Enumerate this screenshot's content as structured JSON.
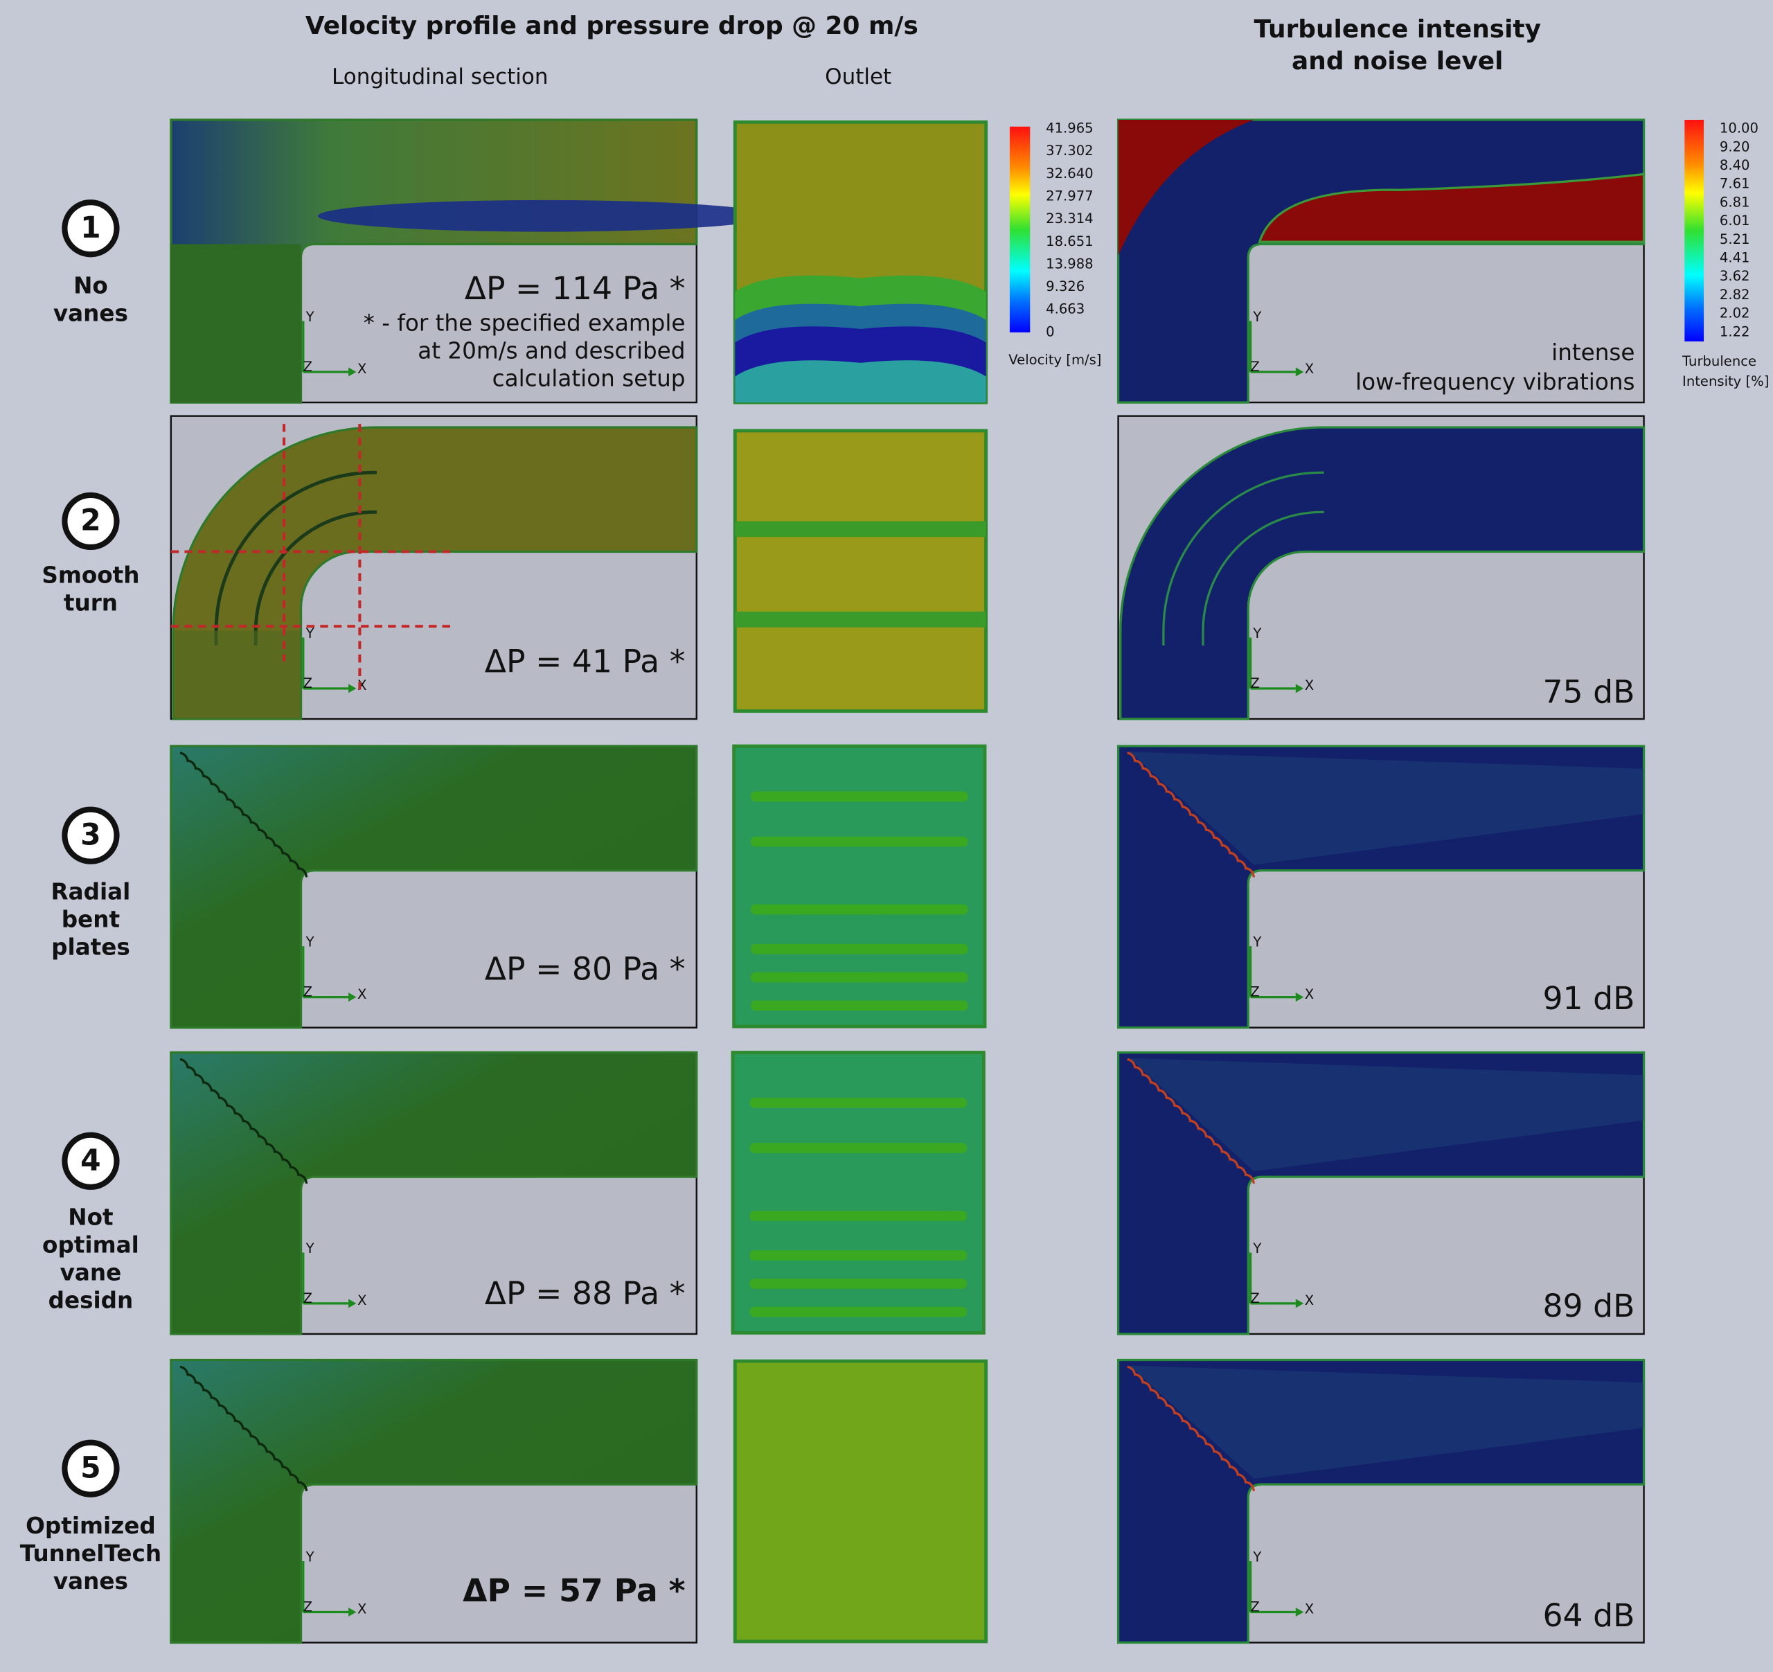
{
  "header": {
    "title": "Velocity profile and pressure drop @ 20 m/s",
    "col_longitudinal": "Longitudinal section",
    "col_outlet": "Outlet",
    "col_turbulence": [
      "Turbulence intensity",
      "and noise level"
    ]
  },
  "rows": [
    {
      "number": "1",
      "label": [
        "No",
        "vanes"
      ],
      "pressure_drop": "ΔP = 114 Pa *",
      "note": [
        "* - for the specified example",
        "at 20m/s and described",
        "calculation setup"
      ],
      "noise": [
        "intense",
        "low-frequency vibrations"
      ]
    },
    {
      "number": "2",
      "label": [
        "Smooth",
        "turn"
      ],
      "pressure_drop": "ΔP = 41 Pa *",
      "noise": [
        "75 dB"
      ]
    },
    {
      "number": "3",
      "label": [
        "Radial",
        "bent",
        "plates"
      ],
      "pressure_drop": "ΔP = 80 Pa *",
      "noise": [
        "91 dB"
      ]
    },
    {
      "number": "4",
      "label": [
        "Not",
        "optimal",
        "vane",
        "desidn"
      ],
      "pressure_drop": "ΔP = 88 Pa *",
      "noise": [
        "89 dB"
      ]
    },
    {
      "number": "5",
      "label": [
        "Optimized",
        "TunnelTech",
        "vanes"
      ],
      "pressure_drop": "ΔP = 57 Pa *",
      "noise": [
        "64 dB"
      ]
    }
  ],
  "velocity_legend": {
    "ticks": [
      "41.965",
      "37.302",
      "32.640",
      "27.977",
      "23.314",
      "18.651",
      "13.988",
      "9.326",
      "4.663",
      "0"
    ],
    "title": "Velocity [m/s]"
  },
  "turbulence_legend": {
    "ticks": [
      "10.00",
      "9.20",
      "8.40",
      "7.61",
      "6.81",
      "6.01",
      "5.21",
      "4.41",
      "3.62",
      "2.82",
      "2.02",
      "1.22"
    ],
    "title": [
      "Turbulence",
      "Intensity [%]"
    ]
  },
  "axis_labels": {
    "x": "X",
    "y": "Y",
    "z": "Z"
  }
}
